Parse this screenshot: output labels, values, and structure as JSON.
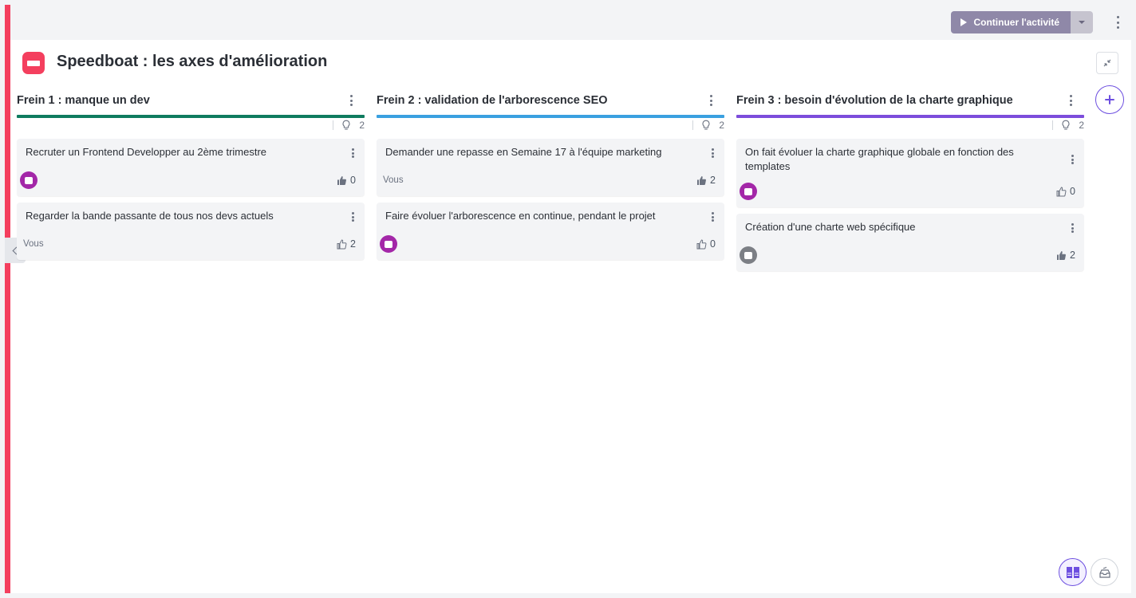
{
  "topbar": {
    "continue_label": "Continuer l'activité"
  },
  "page": {
    "title": "Speedboat : les axes d'amélioration"
  },
  "columns": [
    {
      "title": "Frein 1 : manque un dev",
      "color": "#0f7b5f",
      "idea_count": "2",
      "cards": [
        {
          "text": "Recruter un Frontend Developper au 2ème trimestre",
          "author": "",
          "avatar": "purple",
          "votes": "0",
          "voted": true
        },
        {
          "text": "Regarder la bande passante de tous nos devs actuels",
          "author": "Vous",
          "avatar": "",
          "votes": "2",
          "voted": false
        }
      ]
    },
    {
      "title": "Frein 2 : validation de l'arborescence SEO",
      "color": "#3aa0e0",
      "idea_count": "2",
      "cards": [
        {
          "text": "Demander une repasse en Semaine 17 à l'équipe marketing",
          "author": "Vous",
          "avatar": "",
          "votes": "2",
          "voted": true
        },
        {
          "text": "Faire évoluer l'arborescence en continue, pendant le projet",
          "author": "",
          "avatar": "purple",
          "votes": "0",
          "voted": false
        }
      ]
    },
    {
      "title": "Frein 3 : besoin d'évolution de la charte graphique",
      "color": "#7c4ddb",
      "idea_count": "2",
      "cards": [
        {
          "text": "On fait évoluer la charte graphique globale en fonction des templates",
          "author": "",
          "avatar": "purple",
          "votes": "0",
          "voted": false
        },
        {
          "text": "Création d'une charte web spécifique",
          "author": "",
          "avatar": "grey",
          "votes": "2",
          "voted": true
        }
      ]
    }
  ],
  "colors": {
    "accent": "#f43f5e",
    "primary": "#6d4fe0",
    "continue_button": "#8f88a8"
  }
}
